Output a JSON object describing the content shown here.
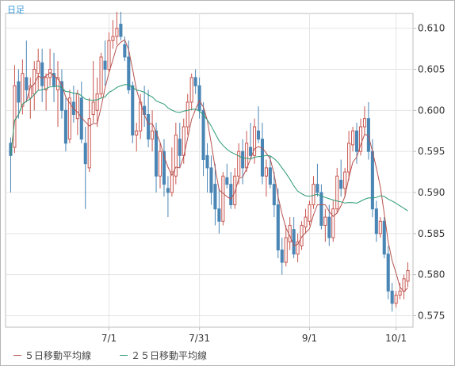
{
  "panel": {
    "timeframe_label": "日足"
  },
  "legend": [
    {
      "label": "５日移動平均線",
      "color": "#b5524f"
    },
    {
      "label": "２５日移動平均線",
      "color": "#2a9a73"
    }
  ],
  "colors": {
    "up": "#c8564f",
    "down": "#4a86b5",
    "ma5": "#b5524f",
    "ma25": "#2a9a73",
    "grid": "#e4e4e4",
    "axis": "#bcbcbc"
  },
  "chart_data": {
    "type": "candlestick",
    "y_ticks": [
      "0.575",
      "0.580",
      "0.585",
      "0.590",
      "0.595",
      "0.600",
      "0.605",
      "0.610"
    ],
    "ylim": [
      0.5736,
      0.6118
    ],
    "x_tick_labels": [
      {
        "label": "7/1",
        "index": 25
      },
      {
        "label": "7/31",
        "index": 48
      },
      {
        "label": "9/1",
        "index": 76
      },
      {
        "label": "10/1",
        "index": 98
      }
    ],
    "candles": [
      [
        0.596,
        0.5967,
        0.59,
        0.5945
      ],
      [
        0.5955,
        0.6055,
        0.5948,
        0.603
      ],
      [
        0.6035,
        0.605,
        0.599,
        0.601
      ],
      [
        0.6005,
        0.6062,
        0.5995,
        0.6045
      ],
      [
        0.604,
        0.6085,
        0.601,
        0.6025
      ],
      [
        0.6015,
        0.604,
        0.599,
        0.603
      ],
      [
        0.602,
        0.606,
        0.6,
        0.605
      ],
      [
        0.6045,
        0.6075,
        0.6025,
        0.606
      ],
      [
        0.6058,
        0.6075,
        0.601,
        0.603
      ],
      [
        0.6025,
        0.6045,
        0.6,
        0.604
      ],
      [
        0.604,
        0.6075,
        0.603,
        0.605
      ],
      [
        0.6045,
        0.607,
        0.601,
        0.603
      ],
      [
        0.6025,
        0.606,
        0.598,
        0.604
      ],
      [
        0.6035,
        0.605,
        0.599,
        0.6
      ],
      [
        0.6,
        0.6015,
        0.595,
        0.596
      ],
      [
        0.5965,
        0.6025,
        0.596,
        0.6015
      ],
      [
        0.601,
        0.603,
        0.5985,
        0.5995
      ],
      [
        0.599,
        0.6025,
        0.597,
        0.602
      ],
      [
        0.6015,
        0.6035,
        0.596,
        0.5965
      ],
      [
        0.596,
        0.598,
        0.588,
        0.5935
      ],
      [
        0.593,
        0.6015,
        0.5925,
        0.599
      ],
      [
        0.5995,
        0.606,
        0.5985,
        0.601
      ],
      [
        0.6,
        0.604,
        0.598,
        0.602
      ],
      [
        0.602,
        0.607,
        0.6015,
        0.6065
      ],
      [
        0.606,
        0.6085,
        0.603,
        0.605
      ],
      [
        0.605,
        0.6095,
        0.6045,
        0.6085
      ],
      [
        0.6085,
        0.611,
        0.6075,
        0.609
      ],
      [
        0.609,
        0.612,
        0.608,
        0.61
      ],
      [
        0.6105,
        0.612,
        0.6085,
        0.609
      ],
      [
        0.608,
        0.609,
        0.606,
        0.6065
      ],
      [
        0.6065,
        0.6085,
        0.602,
        0.6025
      ],
      [
        0.603,
        0.6035,
        0.596,
        0.597
      ],
      [
        0.597,
        0.5985,
        0.595,
        0.5975
      ],
      [
        0.5975,
        0.602,
        0.5965,
        0.601
      ],
      [
        0.6005,
        0.603,
        0.598,
        0.5995
      ],
      [
        0.5995,
        0.6025,
        0.5955,
        0.5965
      ],
      [
        0.5965,
        0.6,
        0.595,
        0.5975
      ],
      [
        0.5975,
        0.5985,
        0.59,
        0.592
      ],
      [
        0.592,
        0.596,
        0.5905,
        0.595
      ],
      [
        0.595,
        0.5965,
        0.5895,
        0.591
      ],
      [
        0.5905,
        0.592,
        0.587,
        0.59
      ],
      [
        0.59,
        0.5955,
        0.5895,
        0.5925
      ],
      [
        0.592,
        0.5985,
        0.591,
        0.597
      ],
      [
        0.5965,
        0.5985,
        0.593,
        0.5945
      ],
      [
        0.5945,
        0.599,
        0.5935,
        0.598
      ],
      [
        0.598,
        0.602,
        0.597,
        0.601
      ],
      [
        0.601,
        0.6045,
        0.6,
        0.604
      ],
      [
        0.604,
        0.605,
        0.602,
        0.603
      ],
      [
        0.603,
        0.604,
        0.599,
        0.6
      ],
      [
        0.6,
        0.601,
        0.592,
        0.594
      ],
      [
        0.5945,
        0.596,
        0.59,
        0.593
      ],
      [
        0.593,
        0.5945,
        0.5885,
        0.59
      ],
      [
        0.591,
        0.5935,
        0.586,
        0.588
      ],
      [
        0.588,
        0.5905,
        0.585,
        0.5865
      ],
      [
        0.5865,
        0.5925,
        0.586,
        0.592
      ],
      [
        0.5918,
        0.5935,
        0.5905,
        0.591
      ],
      [
        0.591,
        0.5925,
        0.588,
        0.5885
      ],
      [
        0.5885,
        0.593,
        0.588,
        0.592
      ],
      [
        0.592,
        0.596,
        0.591,
        0.595
      ],
      [
        0.595,
        0.5965,
        0.591,
        0.593
      ],
      [
        0.593,
        0.5975,
        0.5925,
        0.596
      ],
      [
        0.5955,
        0.5985,
        0.594,
        0.5945
      ],
      [
        0.5945,
        0.599,
        0.5935,
        0.598
      ],
      [
        0.5975,
        0.6005,
        0.596,
        0.5965
      ],
      [
        0.5965,
        0.5985,
        0.591,
        0.592
      ],
      [
        0.592,
        0.594,
        0.5895,
        0.593
      ],
      [
        0.593,
        0.5945,
        0.5905,
        0.591
      ],
      [
        0.591,
        0.5925,
        0.587,
        0.5885
      ],
      [
        0.5885,
        0.5905,
        0.582,
        0.583
      ],
      [
        0.583,
        0.5845,
        0.58,
        0.5815
      ],
      [
        0.5815,
        0.586,
        0.581,
        0.5845
      ],
      [
        0.584,
        0.587,
        0.583,
        0.586
      ],
      [
        0.5855,
        0.587,
        0.582,
        0.5825
      ],
      [
        0.5825,
        0.585,
        0.5815,
        0.584
      ],
      [
        0.5835,
        0.5865,
        0.583,
        0.586
      ],
      [
        0.5858,
        0.588,
        0.585,
        0.587
      ],
      [
        0.5865,
        0.589,
        0.586,
        0.5885
      ],
      [
        0.5885,
        0.592,
        0.588,
        0.591
      ],
      [
        0.591,
        0.5935,
        0.5895,
        0.59
      ],
      [
        0.59,
        0.591,
        0.5855,
        0.586
      ],
      [
        0.586,
        0.588,
        0.584,
        0.587
      ],
      [
        0.587,
        0.5885,
        0.5835,
        0.5845
      ],
      [
        0.5845,
        0.589,
        0.584,
        0.588
      ],
      [
        0.588,
        0.593,
        0.5875,
        0.592
      ],
      [
        0.5915,
        0.594,
        0.5895,
        0.5905
      ],
      [
        0.5905,
        0.593,
        0.5895,
        0.5925
      ],
      [
        0.5925,
        0.5975,
        0.5915,
        0.596
      ],
      [
        0.5958,
        0.598,
        0.595,
        0.5975
      ],
      [
        0.5975,
        0.5985,
        0.5935,
        0.595
      ],
      [
        0.595,
        0.599,
        0.5945,
        0.598
      ],
      [
        0.598,
        0.6005,
        0.597,
        0.599
      ],
      [
        0.599,
        0.601,
        0.594,
        0.595
      ],
      [
        0.595,
        0.5965,
        0.587,
        0.588
      ],
      [
        0.588,
        0.589,
        0.584,
        0.585
      ],
      [
        0.585,
        0.587,
        0.5845,
        0.5865
      ],
      [
        0.5865,
        0.587,
        0.582,
        0.5825
      ],
      [
        0.5825,
        0.5835,
        0.577,
        0.578
      ],
      [
        0.578,
        0.579,
        0.5755,
        0.5765
      ],
      [
        0.5765,
        0.578,
        0.576,
        0.5775
      ],
      [
        0.5775,
        0.579,
        0.577,
        0.578
      ],
      [
        0.578,
        0.58,
        0.577,
        0.5795
      ],
      [
        0.5792,
        0.5815,
        0.5785,
        0.5805
      ]
    ]
  }
}
